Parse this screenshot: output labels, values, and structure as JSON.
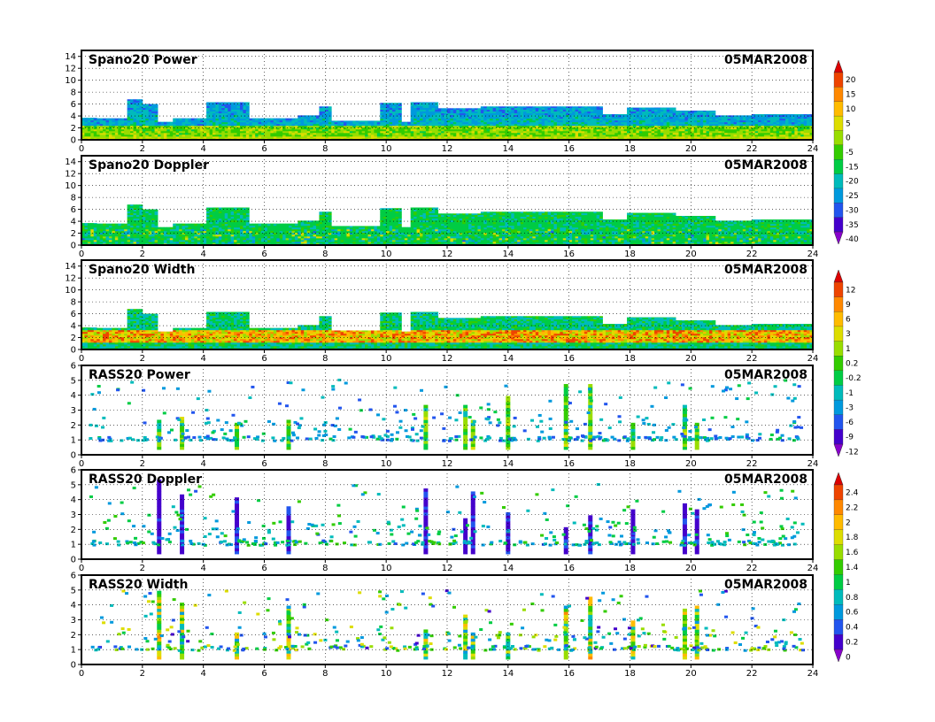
{
  "chart_data": [
    {
      "type": "heatmap",
      "title": "Spano20 Power",
      "date": "05MAR2008",
      "xlim": [
        0,
        24
      ],
      "ylim": [
        0,
        15
      ],
      "xticks": [
        "0",
        "2",
        "4",
        "6",
        "8",
        "10",
        "12",
        "14",
        "16",
        "18",
        "20",
        "22",
        "24"
      ],
      "yticks": [
        "0",
        "2",
        "4",
        "6",
        "8",
        "10",
        "12",
        "14"
      ],
      "grid": true,
      "colorbar": "power_scale",
      "data_top": [
        {
          "t": [
            0.0,
            0.5
          ],
          "h": 3.7
        },
        {
          "t": [
            0.5,
            1.5
          ],
          "h": 3.6
        },
        {
          "t": [
            1.5,
            2.0
          ],
          "h": 6.8
        },
        {
          "t": [
            2.0,
            2.5
          ],
          "h": 6.0
        },
        {
          "t": [
            2.5,
            3.0
          ],
          "h": 3.0
        },
        {
          "t": [
            3.0,
            4.1
          ],
          "h": 3.6
        },
        {
          "t": [
            4.1,
            5.4
          ],
          "h": 6.3
        },
        {
          "t": [
            5.4,
            6.2
          ],
          "h": 3.6
        },
        {
          "t": [
            6.2,
            7.0
          ],
          "h": 3.6
        },
        {
          "t": [
            7.0,
            7.7
          ],
          "h": 4.1
        },
        {
          "t": [
            7.7,
            8.1
          ],
          "h": 5.6
        },
        {
          "t": [
            8.1,
            9.7
          ],
          "h": 3.2
        },
        {
          "t": [
            9.7,
            10.4
          ],
          "h": 6.2
        },
        {
          "t": [
            10.4,
            10.7
          ],
          "h": 3.0
        },
        {
          "t": [
            10.7,
            11.6
          ],
          "h": 6.3
        },
        {
          "t": [
            11.6,
            13.0
          ],
          "h": 5.3
        },
        {
          "t": [
            13.0,
            15.0
          ],
          "h": 5.6
        },
        {
          "t": [
            15.0,
            17.0
          ],
          "h": 5.6
        },
        {
          "t": [
            17.0,
            17.8
          ],
          "h": 4.3
        },
        {
          "t": [
            17.8,
            19.5
          ],
          "h": 5.4
        },
        {
          "t": [
            19.5,
            20.8
          ],
          "h": 4.9
        },
        {
          "t": [
            20.8,
            22.0
          ],
          "h": 4.1
        },
        {
          "t": [
            22.0,
            24.0
          ],
          "h": 4.3
        }
      ]
    },
    {
      "type": "heatmap",
      "title": "Spano20 Doppler",
      "date": "05MAR2008",
      "xlim": [
        0,
        24
      ],
      "ylim": [
        0,
        15
      ],
      "xticks": [
        "0",
        "2",
        "4",
        "6",
        "8",
        "10",
        "12",
        "14",
        "16",
        "18",
        "20",
        "22",
        "24"
      ],
      "yticks": [
        "0",
        "2",
        "4",
        "6",
        "8",
        "10",
        "12",
        "14"
      ],
      "grid": true,
      "colorbar": "power_scale"
    },
    {
      "type": "heatmap",
      "title": "Spano20 Width",
      "date": "05MAR2008",
      "xlim": [
        0,
        24
      ],
      "ylim": [
        0,
        15
      ],
      "xticks": [
        "0",
        "2",
        "4",
        "6",
        "8",
        "10",
        "12",
        "14",
        "16",
        "18",
        "20",
        "22",
        "24"
      ],
      "yticks": [
        "0",
        "2",
        "4",
        "6",
        "8",
        "10",
        "12",
        "14"
      ],
      "grid": true,
      "colorbar": "width_scale"
    },
    {
      "type": "scatter",
      "title": "RASS20 Power",
      "date": "05MAR2008",
      "xlim": [
        0,
        24
      ],
      "ylim": [
        0,
        6
      ],
      "xticks": [
        "0",
        "2",
        "4",
        "6",
        "8",
        "10",
        "12",
        "14",
        "16",
        "18",
        "20",
        "22",
        "24"
      ],
      "yticks": [
        "0",
        "1",
        "2",
        "3",
        "4",
        "5",
        "6"
      ],
      "grid": true,
      "colorbar": "width_scale",
      "columns": [
        2.55,
        3.3,
        5.1,
        6.8,
        11.3,
        12.6,
        12.85,
        14.0,
        15.9,
        16.7,
        18.1,
        19.8,
        20.2
      ]
    },
    {
      "type": "scatter",
      "title": "RASS20 Doppler",
      "date": "05MAR2008",
      "xlim": [
        0,
        24
      ],
      "ylim": [
        0,
        6
      ],
      "xticks": [
        "0",
        "2",
        "4",
        "6",
        "8",
        "10",
        "12",
        "14",
        "16",
        "18",
        "20",
        "22",
        "24"
      ],
      "yticks": [
        "0",
        "1",
        "2",
        "3",
        "4",
        "5",
        "6"
      ],
      "grid": true,
      "colorbar": "rass_scale",
      "columns": [
        2.55,
        3.3,
        5.1,
        6.8,
        11.3,
        12.6,
        12.85,
        14.0,
        15.9,
        16.7,
        18.1,
        19.8,
        20.2
      ]
    },
    {
      "type": "scatter",
      "title": "RASS20 Width",
      "date": "05MAR2008",
      "xlim": [
        0,
        24
      ],
      "ylim": [
        0,
        6
      ],
      "xticks": [
        "0",
        "2",
        "4",
        "6",
        "8",
        "10",
        "12",
        "14",
        "16",
        "18",
        "20",
        "22",
        "24"
      ],
      "yticks": [
        "0",
        "1",
        "2",
        "3",
        "4",
        "5",
        "6"
      ],
      "grid": true,
      "colorbar": "rass_scale",
      "columns": [
        2.55,
        3.3,
        5.1,
        6.8,
        11.3,
        12.6,
        12.85,
        14.0,
        15.9,
        16.7,
        18.1,
        19.8,
        20.2
      ]
    }
  ],
  "colorbars": {
    "power_scale": {
      "labels": [
        "20",
        "15",
        "10",
        "5",
        "0",
        "-5",
        "-15",
        "-20",
        "-25",
        "-30",
        "-35",
        "-40"
      ],
      "colors": [
        "#dd0000",
        "#ee4400",
        "#ff8800",
        "#ffbb00",
        "#dddd00",
        "#99dd00",
        "#33cc00",
        "#00cc44",
        "#00bbbb",
        "#0099dd",
        "#2255ee",
        "#4400cc",
        "#8800cc"
      ]
    },
    "width_scale": {
      "labels": [
        "12",
        "9",
        "6",
        "3",
        "1",
        "0.2",
        "-0.2",
        "-1",
        "-3",
        "-6",
        "-9",
        "-12"
      ],
      "colors": [
        "#dd0000",
        "#ee4400",
        "#ff8800",
        "#ffbb00",
        "#dddd00",
        "#99dd00",
        "#33cc00",
        "#00cc44",
        "#00bbbb",
        "#0099dd",
        "#2255ee",
        "#4400cc",
        "#8800cc"
      ]
    },
    "rass_scale": {
      "labels": [
        "2.4",
        "2.2",
        "2",
        "1.8",
        "1.6",
        "1.4",
        "1",
        "0.8",
        "0.6",
        "0.4",
        "0.2",
        "0"
      ],
      "colors": [
        "#dd0000",
        "#ee4400",
        "#ff8800",
        "#ffbb00",
        "#dddd00",
        "#99dd00",
        "#33cc00",
        "#00cc44",
        "#00bbbb",
        "#0099dd",
        "#2255ee",
        "#4400cc",
        "#8800cc"
      ]
    }
  }
}
